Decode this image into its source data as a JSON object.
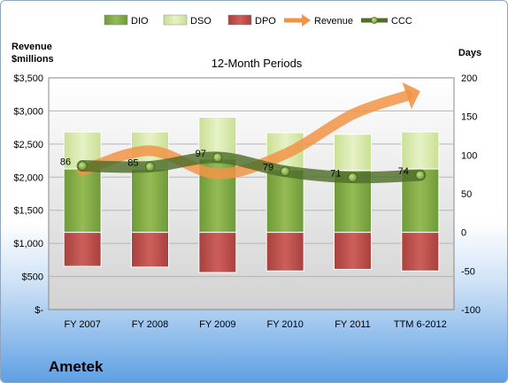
{
  "company": "Ametek",
  "colors": {
    "dio": "#7fa544",
    "dso": "#d6e8ab",
    "dpo": "#c0504d",
    "revenue": "#f29447",
    "ccc": "#4e6e2a"
  },
  "chart_data": {
    "type": "bar",
    "title": "12-Month Periods",
    "ylabel_left": "Revenue\n$millions",
    "ylabel_right": "Days",
    "categories": [
      "FY 2007",
      "FY 2008",
      "FY 2009",
      "FY 2010",
      "FY 2011",
      "TTM 6-2012"
    ],
    "legend_position": "top",
    "legend": [
      "DIO",
      "DSO",
      "DPO",
      "Revenue",
      "CCC"
    ],
    "left_axis": {
      "min": 0,
      "max": 3500,
      "step": 500,
      "tick_labels": [
        "$-",
        "$500",
        "$1,000",
        "$1,500",
        "$2,000",
        "$2,500",
        "$3,000",
        "$3,500"
      ]
    },
    "right_axis": {
      "min": -100,
      "max": 200,
      "step": 50,
      "tick_labels": [
        "-100",
        "-50",
        "0",
        "50",
        "100",
        "150",
        "200"
      ]
    },
    "series": [
      {
        "name": "DIO",
        "axis": "right",
        "values": [
          82,
          82,
          95,
          81,
          80,
          82
        ]
      },
      {
        "name": "DSO",
        "axis": "right",
        "values": [
          48,
          48,
          54,
          48,
          47,
          48
        ]
      },
      {
        "name": "DPO",
        "axis": "right",
        "values": [
          -44,
          -45,
          -52,
          -50,
          -48,
          -50
        ]
      },
      {
        "name": "Revenue",
        "axis": "left",
        "values": [
          2100,
          2400,
          2050,
          2350,
          2950,
          3300
        ]
      },
      {
        "name": "CCC",
        "axis": "right",
        "values": [
          86,
          85,
          97,
          79,
          71,
          74
        ]
      }
    ],
    "ccc_labels": [
      "86",
      "85",
      "97",
      "79",
      "71",
      "74"
    ],
    "grid": true
  }
}
